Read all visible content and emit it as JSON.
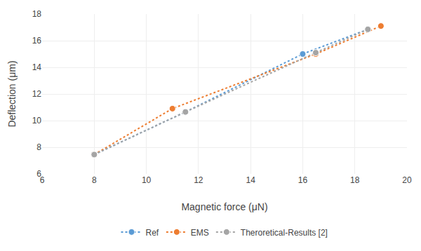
{
  "chart_data": {
    "type": "line",
    "x_label": "Magnetic force (μN)",
    "y_label": "Deflection (μm)",
    "series": [
      {
        "name": "Ref",
        "color": "#5b9bd5",
        "x": [
          8.0,
          11.5,
          16.0,
          18.5
        ],
        "values": [
          7.45,
          10.65,
          15.0,
          16.85
        ],
        "line_style": "dotted",
        "marker": "circle"
      },
      {
        "name": "EMS",
        "color": "#ed7d31",
        "x": [
          8.0,
          11.0,
          16.5,
          19.0
        ],
        "values": [
          7.45,
          10.9,
          15.0,
          17.1
        ],
        "line_style": "dotted",
        "marker": "circle"
      },
      {
        "name": "Theroretical-Results [2]",
        "color": "#a5a5a5",
        "x": [
          8.0,
          11.5,
          16.5,
          18.5
        ],
        "values": [
          7.45,
          10.65,
          15.1,
          16.85
        ],
        "line_style": "dotted",
        "marker": "circle"
      }
    ],
    "xlim": [
      6,
      20
    ],
    "ylim": [
      6,
      18
    ],
    "xticks": [
      6,
      8,
      10,
      12,
      14,
      16,
      18,
      20
    ],
    "yticks": [
      6,
      8,
      10,
      12,
      14,
      16,
      18
    ],
    "grid": true,
    "legend": "bottom"
  }
}
